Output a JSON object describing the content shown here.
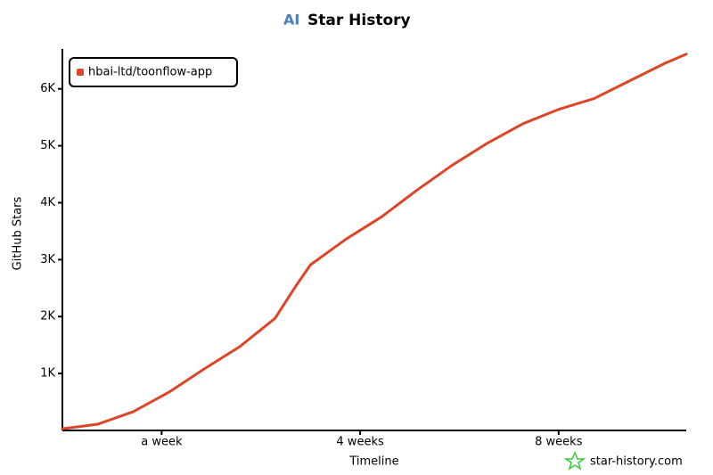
{
  "chart_data": {
    "type": "line",
    "title": "Star History",
    "x_label": "Timeline",
    "y_label": "GitHub Stars",
    "footer": "star-history.com",
    "x": [
      0,
      5,
      10,
      15,
      20,
      25,
      30,
      33,
      35,
      40,
      45,
      50,
      55,
      60,
      65,
      70,
      75,
      80,
      85,
      88
    ],
    "series": [
      {
        "name": "hbai-ltd/toonflow-app",
        "color": "#dd4528",
        "values": [
          30,
          110,
          330,
          670,
          1080,
          1470,
          1970,
          2550,
          2910,
          3360,
          3750,
          4220,
          4660,
          5050,
          5390,
          5640,
          5830,
          6140,
          6450,
          6610
        ]
      }
    ],
    "xlim": [
      0,
      88
    ],
    "xticks": [
      {
        "value": 14,
        "label": "a week"
      },
      {
        "value": 42,
        "label": "4 weeks"
      },
      {
        "value": 70,
        "label": "8 weeks"
      }
    ],
    "ylim": [
      0,
      6700
    ],
    "yticks": [
      {
        "value": 1000,
        "label": "1K"
      },
      {
        "value": 2000,
        "label": "2K"
      },
      {
        "value": 3000,
        "label": "3K"
      },
      {
        "value": 4000,
        "label": "4K"
      },
      {
        "value": 5000,
        "label": "5K"
      },
      {
        "value": 6000,
        "label": "6K"
      }
    ],
    "legend": "top-left"
  }
}
